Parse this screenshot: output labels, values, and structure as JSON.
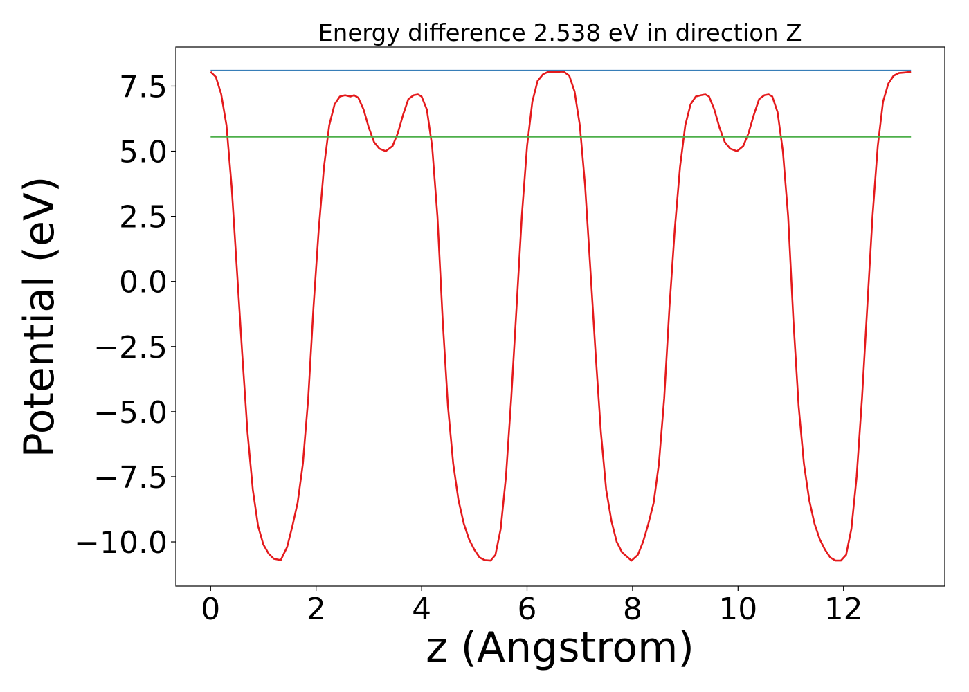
{
  "chart_data": {
    "type": "line",
    "title": "Energy difference 2.538 eV in direction Z",
    "xlabel": "z (Angstrom)",
    "ylabel": "Potential (eV)",
    "xlim": [
      -0.66,
      13.92
    ],
    "ylim": [
      -11.7,
      9.0
    ],
    "xticks": [
      0,
      2,
      4,
      6,
      8,
      10,
      12
    ],
    "xtick_labels": [
      "0",
      "2",
      "4",
      "6",
      "8",
      "10",
      "12"
    ],
    "yticks": [
      -10.0,
      -7.5,
      -5.0,
      -2.5,
      0.0,
      2.5,
      5.0,
      7.5
    ],
    "ytick_labels": [
      "−10.0",
      "−7.5",
      "−5.0",
      "−2.5",
      "0.0",
      "2.5",
      "5.0",
      "7.5"
    ],
    "grid": false,
    "series": [
      {
        "color": "#e41a1c",
        "x": [
          0.0,
          0.1,
          0.2,
          0.3,
          0.4,
          0.5,
          0.6,
          0.7,
          0.8,
          0.9,
          1.0,
          1.1,
          1.2,
          1.33,
          1.45,
          1.55,
          1.65,
          1.75,
          1.85,
          1.95,
          2.05,
          2.15,
          2.25,
          2.35,
          2.45,
          2.55,
          2.65,
          2.72,
          2.8,
          2.9,
          3.0,
          3.1,
          3.2,
          3.32,
          3.45,
          3.55,
          3.65,
          3.75,
          3.85,
          3.93,
          4.0,
          4.1,
          4.2,
          4.3,
          4.4,
          4.5,
          4.6,
          4.7,
          4.8,
          4.9,
          5.0,
          5.1,
          5.2,
          5.31,
          5.4,
          5.5,
          5.6,
          5.7,
          5.8,
          5.9,
          6.0,
          6.1,
          6.2,
          6.3,
          6.4,
          6.5,
          6.6,
          6.65,
          6.7,
          6.8,
          6.9,
          7.0,
          7.1,
          7.2,
          7.3,
          7.4,
          7.5,
          7.6,
          7.7,
          7.8,
          7.98,
          8.1,
          8.2,
          8.3,
          8.4,
          8.5,
          8.6,
          8.7,
          8.8,
          8.9,
          9.0,
          9.1,
          9.2,
          9.3,
          9.38,
          9.45,
          9.55,
          9.65,
          9.75,
          9.85,
          9.98,
          10.1,
          10.2,
          10.3,
          10.4,
          10.5,
          10.58,
          10.65,
          10.75,
          10.85,
          10.95,
          11.05,
          11.15,
          11.25,
          11.35,
          11.45,
          11.55,
          11.65,
          11.75,
          11.85,
          11.95,
          12.05,
          12.15,
          12.25,
          12.35,
          12.45,
          12.55,
          12.65,
          12.75,
          12.85,
          12.95,
          13.05,
          13.15,
          13.28
        ],
        "values": [
          8.05,
          7.85,
          7.2,
          6.0,
          3.6,
          0.4,
          -2.8,
          -5.8,
          -8.0,
          -9.4,
          -10.1,
          -10.45,
          -10.65,
          -10.7,
          -10.2,
          -9.4,
          -8.5,
          -7.0,
          -4.5,
          -1.0,
          2.0,
          4.4,
          6.0,
          6.8,
          7.1,
          7.15,
          7.1,
          7.15,
          7.05,
          6.6,
          5.9,
          5.35,
          5.1,
          5.0,
          5.2,
          5.7,
          6.4,
          7.0,
          7.15,
          7.18,
          7.1,
          6.6,
          5.2,
          2.5,
          -1.5,
          -4.8,
          -7.0,
          -8.4,
          -9.3,
          -9.9,
          -10.3,
          -10.6,
          -10.7,
          -10.72,
          -10.5,
          -9.5,
          -7.5,
          -4.5,
          -1.0,
          2.5,
          5.2,
          6.9,
          7.7,
          7.95,
          8.05,
          8.05,
          8.05,
          8.06,
          8.05,
          7.9,
          7.3,
          6.0,
          3.7,
          0.5,
          -2.8,
          -5.8,
          -8.0,
          -9.2,
          -10.0,
          -10.4,
          -10.72,
          -10.5,
          -10.0,
          -9.3,
          -8.5,
          -7.0,
          -4.5,
          -1.0,
          2.0,
          4.4,
          6.0,
          6.8,
          7.1,
          7.15,
          7.18,
          7.1,
          6.6,
          5.9,
          5.35,
          5.1,
          5.0,
          5.2,
          5.7,
          6.4,
          7.0,
          7.15,
          7.18,
          7.1,
          6.5,
          5.0,
          2.5,
          -1.5,
          -4.8,
          -7.0,
          -8.4,
          -9.3,
          -9.9,
          -10.3,
          -10.6,
          -10.72,
          -10.72,
          -10.5,
          -9.5,
          -7.5,
          -4.5,
          -1.0,
          2.5,
          5.2,
          6.9,
          7.6,
          7.9,
          8.0,
          8.02,
          8.05
        ]
      },
      {
        "color": "#377eb8",
        "x": [
          0.0,
          13.28
        ],
        "values": [
          8.1,
          8.1
        ]
      },
      {
        "color": "#4daf4a",
        "x": [
          0.0,
          13.28
        ],
        "values": [
          5.55,
          5.55
        ]
      }
    ]
  }
}
